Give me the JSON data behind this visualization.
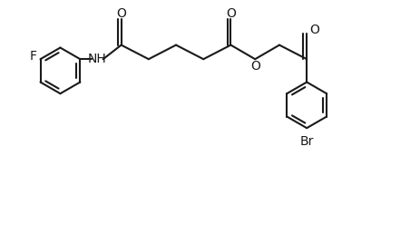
{
  "background_color": "#ffffff",
  "line_color": "#1a1a1a",
  "line_width": 1.5,
  "font_size": 10,
  "figsize": [
    4.64,
    2.58
  ],
  "dpi": 100,
  "xlim": [
    0,
    9.5
  ],
  "ylim": [
    -2.8,
    2.2
  ]
}
